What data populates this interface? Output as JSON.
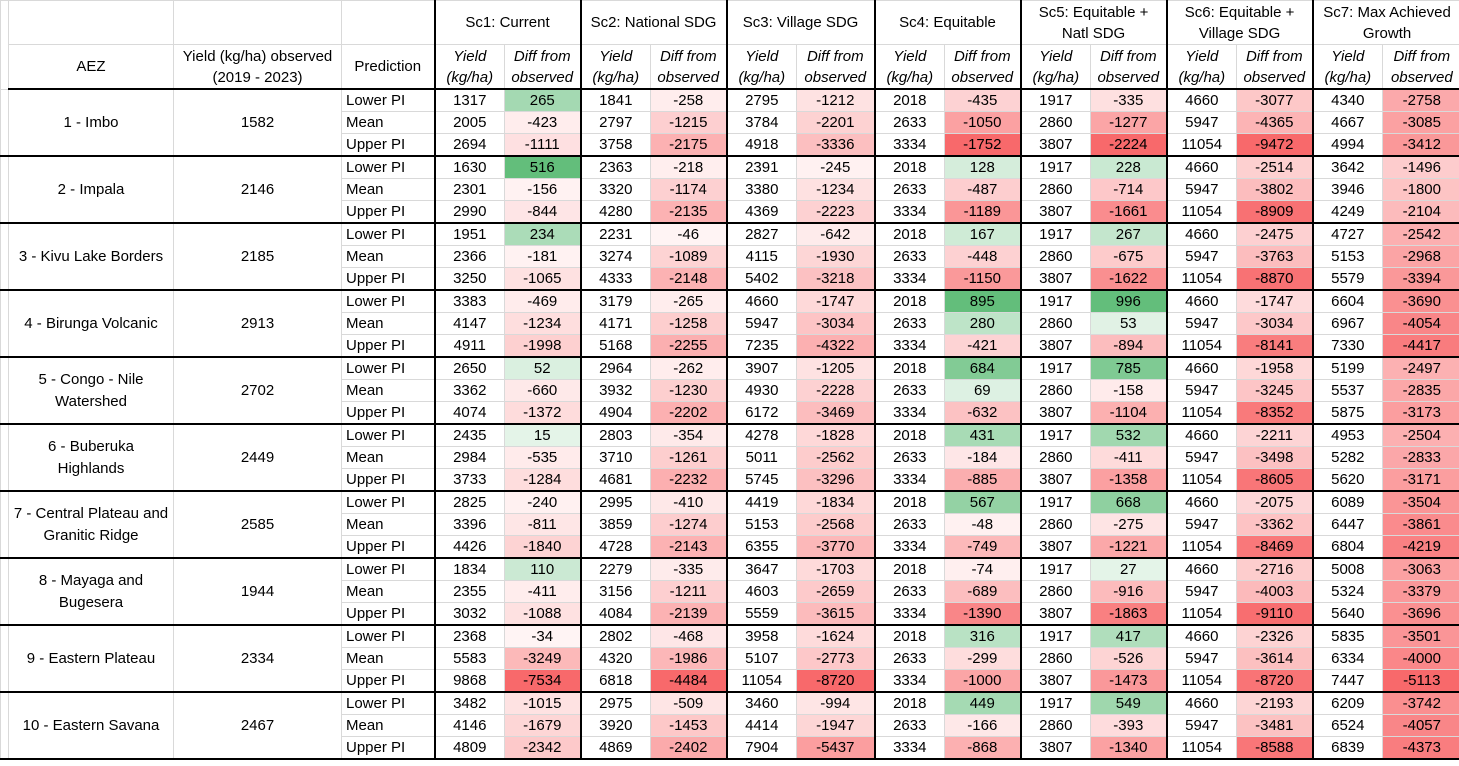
{
  "header": {
    "aez": "AEZ",
    "observed": "Yield (kg/ha) observed (2019 - 2023)",
    "prediction": "Prediction",
    "scenarios": [
      "Sc1: Current",
      "Sc2: National SDG",
      "Sc3: Village SDG",
      "Sc4: Equitable",
      "Sc5: Equitable + Natl SDG",
      "Sc6: Equitable + Village SDG",
      "Sc7: Max Achieved Growth"
    ],
    "yield_label": "Yield (kg/ha)",
    "diff_label": "Diff from observed"
  },
  "colors": {
    "green_strong": "#63be7b",
    "green_light": "#d6eedc",
    "red_strong": "#f8696b",
    "red_light": "#fde6e7"
  },
  "groups": [
    {
      "aez": "1 - Imbo",
      "observed": "1582",
      "rows": [
        {
          "pred": "Lower PI",
          "vals": [
            "1317",
            "265",
            "1841",
            "-258",
            "2795",
            "-1212",
            "2018",
            "-435",
            "1917",
            "-335",
            "4660",
            "-3077",
            "4340",
            "-2758"
          ]
        },
        {
          "pred": "Mean",
          "vals": [
            "2005",
            "-423",
            "2797",
            "-1215",
            "3784",
            "-2201",
            "2633",
            "-1050",
            "2860",
            "-1277",
            "5947",
            "-4365",
            "4667",
            "-3085"
          ]
        },
        {
          "pred": "Upper PI",
          "vals": [
            "2694",
            "-1111",
            "3758",
            "-2175",
            "4918",
            "-3336",
            "3334",
            "-1752",
            "3807",
            "-2224",
            "11054",
            "-9472",
            "4994",
            "-3412"
          ]
        }
      ]
    },
    {
      "aez": "2 - Impala",
      "observed": "2146",
      "rows": [
        {
          "pred": "Lower PI",
          "vals": [
            "1630",
            "516",
            "2363",
            "-218",
            "2391",
            "-245",
            "2018",
            "128",
            "1917",
            "228",
            "4660",
            "-2514",
            "3642",
            "-1496"
          ]
        },
        {
          "pred": "Mean",
          "vals": [
            "2301",
            "-156",
            "3320",
            "-1174",
            "3380",
            "-1234",
            "2633",
            "-487",
            "2860",
            "-714",
            "5947",
            "-3802",
            "3946",
            "-1800"
          ]
        },
        {
          "pred": "Upper PI",
          "vals": [
            "2990",
            "-844",
            "4280",
            "-2135",
            "4369",
            "-2223",
            "3334",
            "-1189",
            "3807",
            "-1661",
            "11054",
            "-8909",
            "4249",
            "-2104"
          ]
        }
      ]
    },
    {
      "aez": "3 - Kivu Lake Borders",
      "observed": "2185",
      "rows": [
        {
          "pred": "Lower PI",
          "vals": [
            "1951",
            "234",
            "2231",
            "-46",
            "2827",
            "-642",
            "2018",
            "167",
            "1917",
            "267",
            "4660",
            "-2475",
            "4727",
            "-2542"
          ]
        },
        {
          "pred": "Mean",
          "vals": [
            "2366",
            "-181",
            "3274",
            "-1089",
            "4115",
            "-1930",
            "2633",
            "-448",
            "2860",
            "-675",
            "5947",
            "-3763",
            "5153",
            "-2968"
          ]
        },
        {
          "pred": "Upper PI",
          "vals": [
            "3250",
            "-1065",
            "4333",
            "-2148",
            "5402",
            "-3218",
            "3334",
            "-1150",
            "3807",
            "-1622",
            "11054",
            "-8870",
            "5579",
            "-3394"
          ]
        }
      ]
    },
    {
      "aez": "4 - Birunga Volcanic",
      "observed": "2913",
      "rows": [
        {
          "pred": "Lower PI",
          "vals": [
            "3383",
            "-469",
            "3179",
            "-265",
            "4660",
            "-1747",
            "2018",
            "895",
            "1917",
            "996",
            "4660",
            "-1747",
            "6604",
            "-3690"
          ]
        },
        {
          "pred": "Mean",
          "vals": [
            "4147",
            "-1234",
            "4171",
            "-1258",
            "5947",
            "-3034",
            "2633",
            "280",
            "2860",
            "53",
            "5947",
            "-3034",
            "6967",
            "-4054"
          ]
        },
        {
          "pred": "Upper PI",
          "vals": [
            "4911",
            "-1998",
            "5168",
            "-2255",
            "7235",
            "-4322",
            "3334",
            "-421",
            "3807",
            "-894",
            "11054",
            "-8141",
            "7330",
            "-4417"
          ]
        }
      ]
    },
    {
      "aez": "5 - Congo - Nile Watershed",
      "observed": "2702",
      "rows": [
        {
          "pred": "Lower PI",
          "vals": [
            "2650",
            "52",
            "2964",
            "-262",
            "3907",
            "-1205",
            "2018",
            "684",
            "1917",
            "785",
            "4660",
            "-1958",
            "5199",
            "-2497"
          ]
        },
        {
          "pred": "Mean",
          "vals": [
            "3362",
            "-660",
            "3932",
            "-1230",
            "4930",
            "-2228",
            "2633",
            "69",
            "2860",
            "-158",
            "5947",
            "-3245",
            "5537",
            "-2835"
          ]
        },
        {
          "pred": "Upper PI",
          "vals": [
            "4074",
            "-1372",
            "4904",
            "-2202",
            "6172",
            "-3469",
            "3334",
            "-632",
            "3807",
            "-1104",
            "11054",
            "-8352",
            "5875",
            "-3173"
          ]
        }
      ]
    },
    {
      "aez": "6 - Buberuka Highlands",
      "observed": "2449",
      "rows": [
        {
          "pred": "Lower PI",
          "vals": [
            "2435",
            "15",
            "2803",
            "-354",
            "4278",
            "-1828",
            "2018",
            "431",
            "1917",
            "532",
            "4660",
            "-2211",
            "4953",
            "-2504"
          ]
        },
        {
          "pred": "Mean",
          "vals": [
            "2984",
            "-535",
            "3710",
            "-1261",
            "5011",
            "-2562",
            "2633",
            "-184",
            "2860",
            "-411",
            "5947",
            "-3498",
            "5282",
            "-2833"
          ]
        },
        {
          "pred": "Upper PI",
          "vals": [
            "3733",
            "-1284",
            "4681",
            "-2232",
            "5745",
            "-3296",
            "3334",
            "-885",
            "3807",
            "-1358",
            "11054",
            "-8605",
            "5620",
            "-3171"
          ]
        }
      ]
    },
    {
      "aez": "7 - Central Plateau and Granitic Ridge",
      "observed": "2585",
      "rows": [
        {
          "pred": "Lower PI",
          "vals": [
            "2825",
            "-240",
            "2995",
            "-410",
            "4419",
            "-1834",
            "2018",
            "567",
            "1917",
            "668",
            "4660",
            "-2075",
            "6089",
            "-3504"
          ]
        },
        {
          "pred": "Mean",
          "vals": [
            "3396",
            "-811",
            "3859",
            "-1274",
            "5153",
            "-2568",
            "2633",
            "-48",
            "2860",
            "-275",
            "5947",
            "-3362",
            "6447",
            "-3861"
          ]
        },
        {
          "pred": "Upper PI",
          "vals": [
            "4426",
            "-1840",
            "4728",
            "-2143",
            "6355",
            "-3770",
            "3334",
            "-749",
            "3807",
            "-1221",
            "11054",
            "-8469",
            "6804",
            "-4219"
          ]
        }
      ]
    },
    {
      "aez": "8 - Mayaga and Bugesera",
      "observed": "1944",
      "rows": [
        {
          "pred": "Lower PI",
          "vals": [
            "1834",
            "110",
            "2279",
            "-335",
            "3647",
            "-1703",
            "2018",
            "-74",
            "1917",
            "27",
            "4660",
            "-2716",
            "5008",
            "-3063"
          ]
        },
        {
          "pred": "Mean",
          "vals": [
            "2355",
            "-411",
            "3156",
            "-1211",
            "4603",
            "-2659",
            "2633",
            "-689",
            "2860",
            "-916",
            "5947",
            "-4003",
            "5324",
            "-3379"
          ]
        },
        {
          "pred": "Upper PI",
          "vals": [
            "3032",
            "-1088",
            "4084",
            "-2139",
            "5559",
            "-3615",
            "3334",
            "-1390",
            "3807",
            "-1863",
            "11054",
            "-9110",
            "5640",
            "-3696"
          ]
        }
      ]
    },
    {
      "aez": "9 - Eastern Plateau",
      "observed": "2334",
      "rows": [
        {
          "pred": "Lower PI",
          "vals": [
            "2368",
            "-34",
            "2802",
            "-468",
            "3958",
            "-1624",
            "2018",
            "316",
            "1917",
            "417",
            "4660",
            "-2326",
            "5835",
            "-3501"
          ]
        },
        {
          "pred": "Mean",
          "vals": [
            "5583",
            "-3249",
            "4320",
            "-1986",
            "5107",
            "-2773",
            "2633",
            "-299",
            "2860",
            "-526",
            "5947",
            "-3614",
            "6334",
            "-4000"
          ]
        },
        {
          "pred": "Upper PI",
          "vals": [
            "9868",
            "-7534",
            "6818",
            "-4484",
            "11054",
            "-8720",
            "3334",
            "-1000",
            "3807",
            "-1473",
            "11054",
            "-8720",
            "7447",
            "-5113"
          ]
        }
      ]
    },
    {
      "aez": "10 - Eastern Savana",
      "observed": "2467",
      "rows": [
        {
          "pred": "Lower PI",
          "vals": [
            "3482",
            "-1015",
            "2975",
            "-509",
            "3460",
            "-994",
            "2018",
            "449",
            "1917",
            "549",
            "4660",
            "-2193",
            "6209",
            "-3742"
          ]
        },
        {
          "pred": "Mean",
          "vals": [
            "4146",
            "-1679",
            "3920",
            "-1453",
            "4414",
            "-1947",
            "2633",
            "-166",
            "2860",
            "-393",
            "5947",
            "-3481",
            "6524",
            "-4057"
          ]
        },
        {
          "pred": "Upper PI",
          "vals": [
            "4809",
            "-2342",
            "4869",
            "-2402",
            "7904",
            "-5437",
            "3334",
            "-868",
            "3807",
            "-1340",
            "11054",
            "-8588",
            "6839",
            "-4373"
          ]
        }
      ]
    }
  ]
}
